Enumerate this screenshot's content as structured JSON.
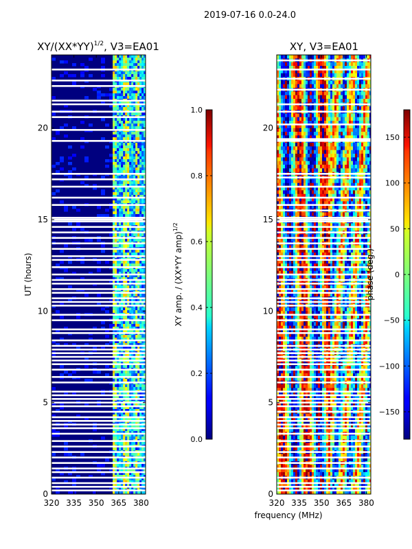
{
  "figure": {
    "suptitle": "2019-07-16 0.0-24.0",
    "shared_xlabel": "frequency (MHz)"
  },
  "chart_data": [
    {
      "type": "heatmap",
      "title_main": "XY/(XX*YY)",
      "title_sup": "1/2",
      "title_tail": ", V3=EA01",
      "xlabel": "",
      "ylabel": "UT (hours)",
      "xlim": [
        320,
        383
      ],
      "ylim": [
        0,
        24
      ],
      "xticks": [
        320,
        335,
        350,
        365,
        380
      ],
      "yticks": [
        0,
        5,
        10,
        15,
        20
      ],
      "background": "#00007f",
      "bright_band_mhz": [
        361,
        383
      ],
      "colorbar": {
        "label_main": "XY amp. / (XX*YY amp)",
        "label_sup": "1/2",
        "range": [
          0.0,
          1.0
        ],
        "ticks": [
          "0.0",
          "0.2",
          "0.4",
          "0.6",
          "0.8",
          "1.0"
        ],
        "tick_values": [
          0.0,
          0.2,
          0.4,
          0.6,
          0.8,
          1.0
        ],
        "colormap": "jet"
      },
      "gap_hours": [
        23.2,
        22.6,
        22.3,
        21.5,
        21.3,
        20.9,
        20.6,
        19.9,
        19.3,
        17.5,
        17.2,
        16.8,
        16.2,
        15.8,
        15.1,
        15.0,
        14.9,
        14.6,
        14.3,
        14.0,
        13.7,
        13.4,
        13.0,
        12.8,
        12.4,
        12.0,
        11.7,
        11.5,
        11.2,
        11.0,
        10.7,
        10.5,
        10.3,
        9.8,
        9.5,
        9.0,
        8.8,
        8.4,
        8.1,
        7.9,
        7.7,
        7.5,
        7.3,
        7.1,
        6.8,
        6.4,
        6.1,
        5.6,
        5.4,
        5.2,
        5.0,
        4.8,
        4.5,
        4.2,
        4.0,
        3.8,
        3.6,
        3.3,
        2.9,
        2.6,
        2.3,
        2.0,
        1.7,
        1.4,
        1.2,
        0.9,
        0.6,
        0.4,
        0.2
      ]
    },
    {
      "type": "heatmap",
      "title_main": "XY, V3=EA01",
      "xlabel": "frequency (MHz)",
      "ylabel": "",
      "xlim": [
        320,
        383
      ],
      "ylim": [
        0,
        24
      ],
      "xticks": [
        320,
        335,
        350,
        365,
        380
      ],
      "yticks": [
        0,
        5,
        10,
        15,
        20
      ],
      "colorbar": {
        "label": "phase (deg.)",
        "range": [
          -180,
          180
        ],
        "ticks": [
          "−150",
          "−100",
          "−50",
          "0",
          "50",
          "100",
          "150"
        ],
        "tick_values": [
          -150,
          -100,
          -50,
          0,
          50,
          100,
          150
        ],
        "colormap": "jet"
      },
      "gap_hours": [
        23.7,
        23.2,
        22.7,
        22.1,
        21.3,
        20.9,
        20.2,
        19.4,
        19.3,
        17.5,
        17.3,
        16.8,
        16.2,
        15.8,
        15.5,
        15.1,
        15.0,
        14.9,
        14.6,
        14.3,
        14.0,
        13.7,
        13.4,
        13.0,
        12.8,
        12.4,
        12.0,
        11.7,
        11.5,
        11.2,
        11.0,
        10.7,
        10.5,
        10.3,
        9.8,
        9.5,
        9.0,
        8.8,
        8.4,
        8.1,
        7.9,
        7.7,
        7.5,
        7.3,
        7.1,
        6.8,
        6.4,
        6.1,
        5.6,
        5.4,
        5.2,
        5.0,
        4.8,
        4.5,
        4.2,
        4.0,
        3.8,
        3.6,
        3.3,
        2.9,
        2.6,
        2.3,
        2.0,
        1.7,
        1.4,
        0.9,
        0.6,
        0.4,
        0.2
      ]
    }
  ]
}
